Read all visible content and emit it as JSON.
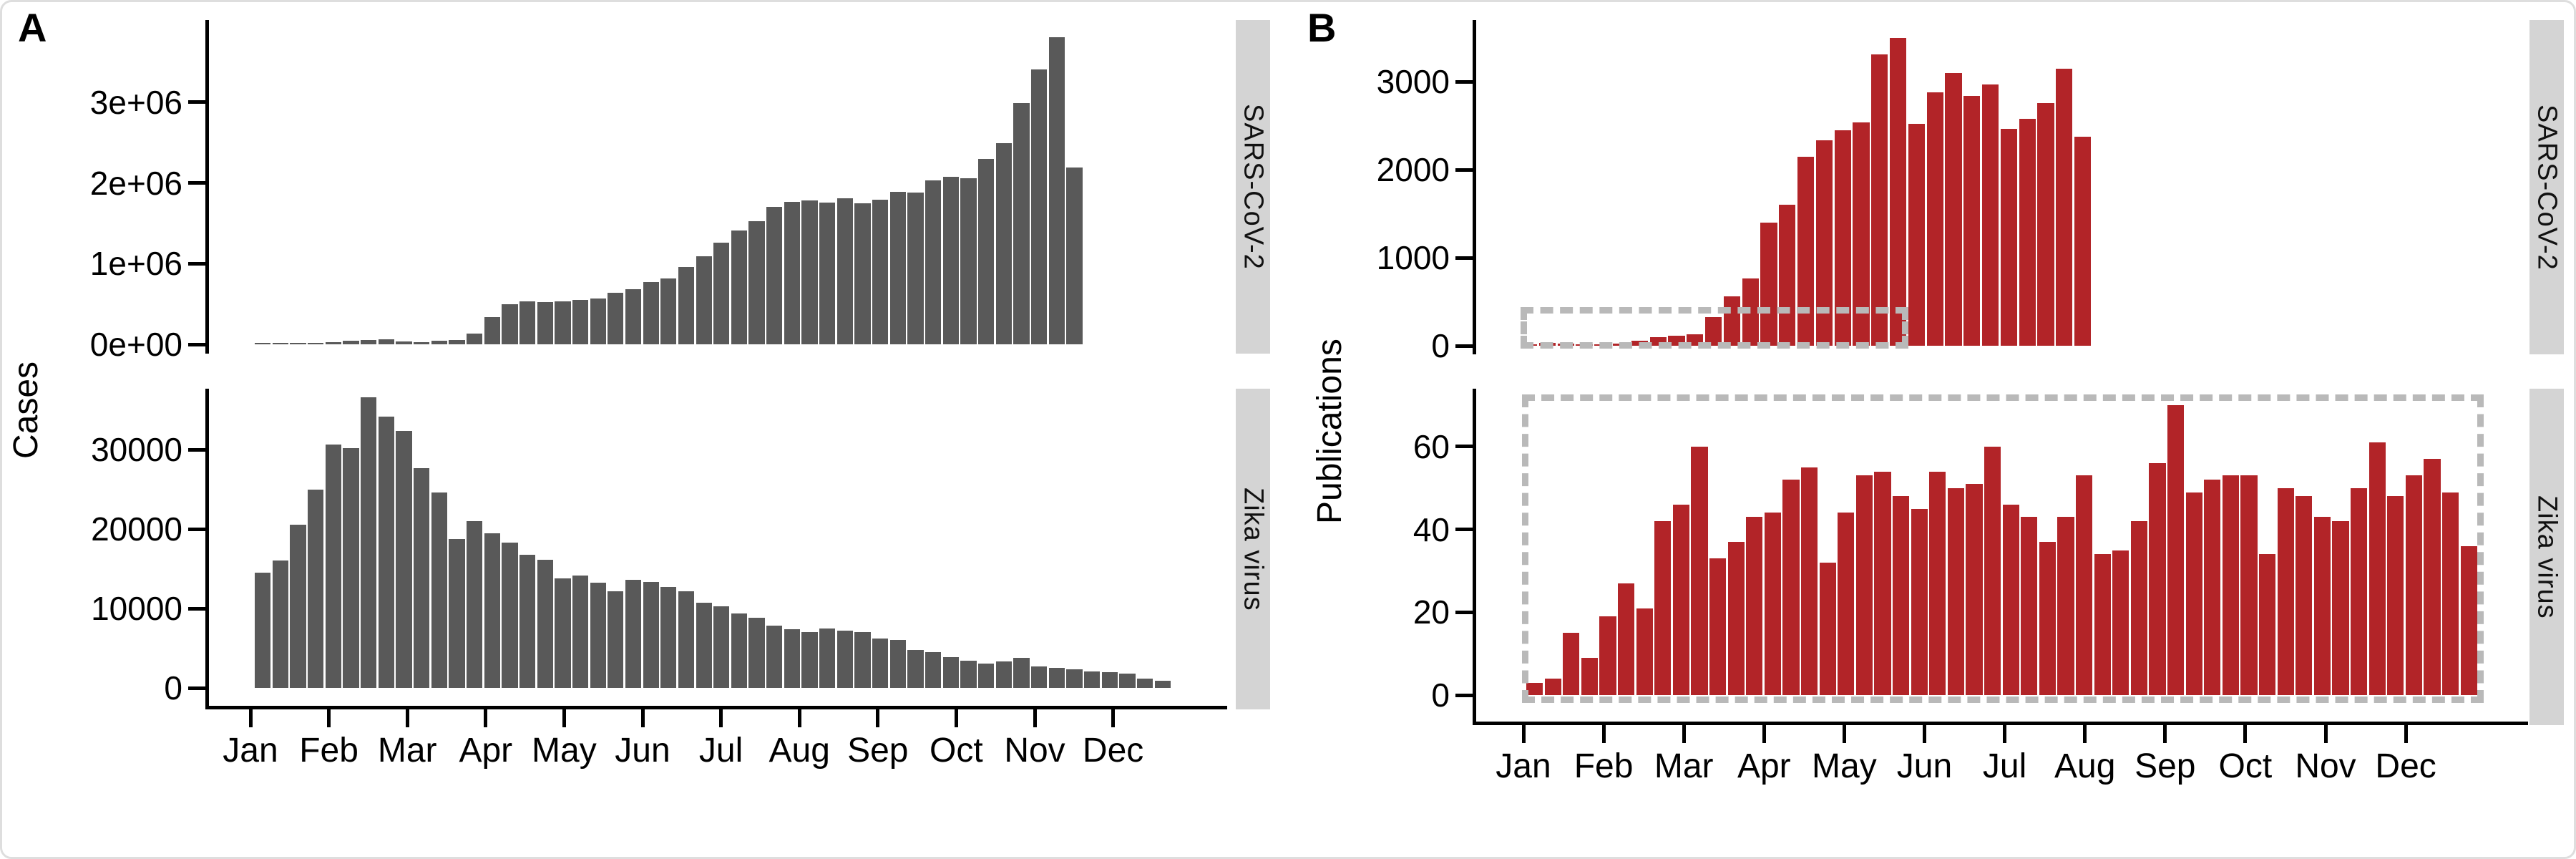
{
  "months": [
    "Jan",
    "Feb",
    "Mar",
    "Apr",
    "May",
    "Jun",
    "Jul",
    "Aug",
    "Sep",
    "Oct",
    "Nov",
    "Dec"
  ],
  "colors": {
    "gray_bar": "#595959",
    "red_bar": "#b22428",
    "strip_bg": "#d4d4d4",
    "dashed_box": "#b9b9b9",
    "axis": "#000000",
    "card_border": "#dedede"
  },
  "panel_a": {
    "label": "A",
    "y_axis_title": "Cases"
  },
  "panel_b": {
    "label": "B",
    "y_axis_title": "Publications"
  },
  "chart_data": [
    {
      "id": "a_top",
      "type": "bar",
      "panel": "A",
      "facet_label": "SARS-CoV-2",
      "ylabel": "Cases",
      "x_unit": "week of year",
      "x_months": [
        "Jan",
        "Feb",
        "Mar",
        "Apr",
        "May",
        "Jun",
        "Jul",
        "Aug",
        "Sep",
        "Oct",
        "Nov",
        "Dec"
      ],
      "ylim": [
        0,
        3900000
      ],
      "ytick_values": [
        0,
        1000000,
        2000000,
        3000000
      ],
      "ytick_labels": [
        "0e+00",
        "1e+06",
        "2e+06",
        "3e+06"
      ],
      "grid": false,
      "values": [
        2000,
        5000,
        8000,
        12000,
        30000,
        40000,
        52000,
        60000,
        33000,
        30000,
        41000,
        50000,
        130000,
        340000,
        500000,
        531000,
        520000,
        529000,
        548000,
        570000,
        640000,
        680000,
        770000,
        820000,
        960000,
        1090000,
        1260000,
        1410000,
        1530000,
        1700000,
        1770000,
        1782000,
        1760000,
        1808000,
        1749000,
        1790000,
        1890000,
        1878000,
        2030000,
        2080000,
        2060000,
        2300000,
        2490000,
        2990000,
        3410000,
        3810000,
        2190000
      ]
    },
    {
      "id": "a_bottom",
      "type": "bar",
      "panel": "A",
      "facet_label": "Zika virus",
      "ylabel": "Cases",
      "x_unit": "week of year",
      "x_months": [
        "Jan",
        "Feb",
        "Mar",
        "Apr",
        "May",
        "Jun",
        "Jul",
        "Aug",
        "Sep",
        "Oct",
        "Nov",
        "Dec"
      ],
      "ylim": [
        0,
        39000
      ],
      "ytick_values": [
        0,
        10000,
        20000,
        30000
      ],
      "ytick_labels": [
        "0",
        "10000",
        "20000",
        "30000"
      ],
      "grid": false,
      "values": [
        14500,
        16000,
        20500,
        25000,
        30600,
        30200,
        36600,
        34100,
        32300,
        27700,
        24600,
        18700,
        21000,
        19500,
        18300,
        16800,
        16100,
        13800,
        14100,
        13200,
        12200,
        13600,
        13300,
        12700,
        12200,
        10700,
        10300,
        9400,
        8800,
        7800,
        7400,
        7000,
        7500,
        7200,
        7000,
        6200,
        6000,
        4800,
        4500,
        3900,
        3400,
        3100,
        3300,
        3800,
        2700,
        2500,
        2300,
        2100,
        2000,
        1800,
        1200,
        900
      ]
    },
    {
      "id": "b_top",
      "type": "bar",
      "panel": "B",
      "facet_label": "SARS-CoV-2",
      "ylabel": "Publications",
      "x_unit": "week of year",
      "x_months": [
        "Jan",
        "Feb",
        "Mar",
        "Apr",
        "May",
        "Jun",
        "Jul",
        "Aug",
        "Sep",
        "Oct",
        "Nov",
        "Dec"
      ],
      "ylim": [
        0,
        3700
      ],
      "ytick_values": [
        0,
        1000,
        2000,
        3000
      ],
      "ytick_labels": [
        "0",
        "1000",
        "2000",
        "3000"
      ],
      "grid": false,
      "zoom_region_outline": {
        "x_span_months": "Jan-May",
        "y_max_value": 430
      },
      "values": [
        5,
        32,
        24,
        8,
        10,
        24,
        57,
        98,
        114,
        130,
        325,
        560,
        764,
        1400,
        1600,
        2150,
        2330,
        2450,
        2540,
        3310,
        3500,
        2520,
        2880,
        3100,
        2840,
        2970,
        2460,
        2580,
        2760,
        3150,
        2370
      ]
    },
    {
      "id": "b_bottom",
      "type": "bar",
      "panel": "B",
      "facet_label": "Zika virus",
      "ylabel": "Publications",
      "x_unit": "week of year",
      "x_months": [
        "Jan",
        "Feb",
        "Mar",
        "Apr",
        "May",
        "Jun",
        "Jul",
        "Aug",
        "Sep",
        "Oct",
        "Nov",
        "Dec"
      ],
      "ylim": [
        0,
        74
      ],
      "ytick_values": [
        0,
        20,
        40,
        60
      ],
      "ytick_labels": [
        "0",
        "20",
        "40",
        "60"
      ],
      "grid": false,
      "zoom_region_outline": {
        "x_span_months": "Jan-Dec",
        "y_max_value": 72
      },
      "values": [
        3,
        4,
        15,
        9,
        19,
        27,
        21,
        42,
        46,
        60,
        33,
        37,
        43,
        44,
        52,
        55,
        32,
        44,
        53,
        54,
        48,
        45,
        54,
        50,
        51,
        60,
        46,
        43,
        37,
        43,
        53,
        34,
        35,
        42,
        56,
        70,
        49,
        52,
        53,
        53,
        34,
        50,
        48,
        43,
        42,
        50,
        61,
        48,
        53,
        57,
        49,
        36
      ]
    }
  ]
}
